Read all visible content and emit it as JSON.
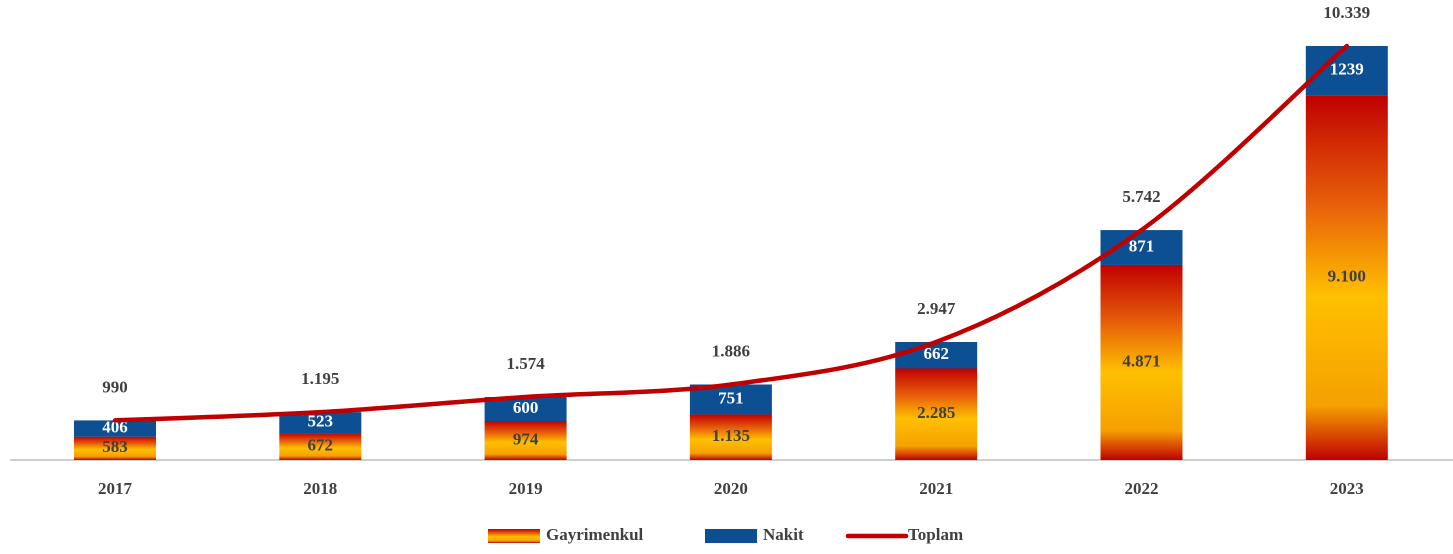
{
  "chart_data": {
    "type": "stacked-bar-line",
    "categories": [
      "2017",
      "2018",
      "2019",
      "2020",
      "2021",
      "2022",
      "2023"
    ],
    "series": [
      {
        "name": "Gayrimenkul",
        "type": "bar",
        "gradient": [
          "#c00000",
          "#e8600a",
          "#ffc000",
          "#f5a000",
          "#c00000"
        ],
        "color": "#c00000",
        "values": [
          583,
          672,
          974,
          1135,
          2285,
          4871,
          9100
        ],
        "value_labels": [
          "583",
          "672",
          "974",
          "1.135",
          "2.285",
          "4.871",
          "9.100"
        ]
      },
      {
        "name": "Nakit",
        "type": "bar",
        "color": "#0d4f93",
        "values": [
          406,
          523,
          600,
          751,
          662,
          871,
          1239
        ]
      },
      {
        "name": "Toplam",
        "type": "line",
        "color": "#c00000",
        "values": [
          990,
          1195,
          1574,
          1886,
          2947,
          5742,
          10339
        ],
        "value_labels": [
          "990",
          "1.195",
          "1.574",
          "1.886",
          "2.947",
          "5.742",
          "10.339"
        ]
      }
    ],
    "legend": "bottom"
  }
}
